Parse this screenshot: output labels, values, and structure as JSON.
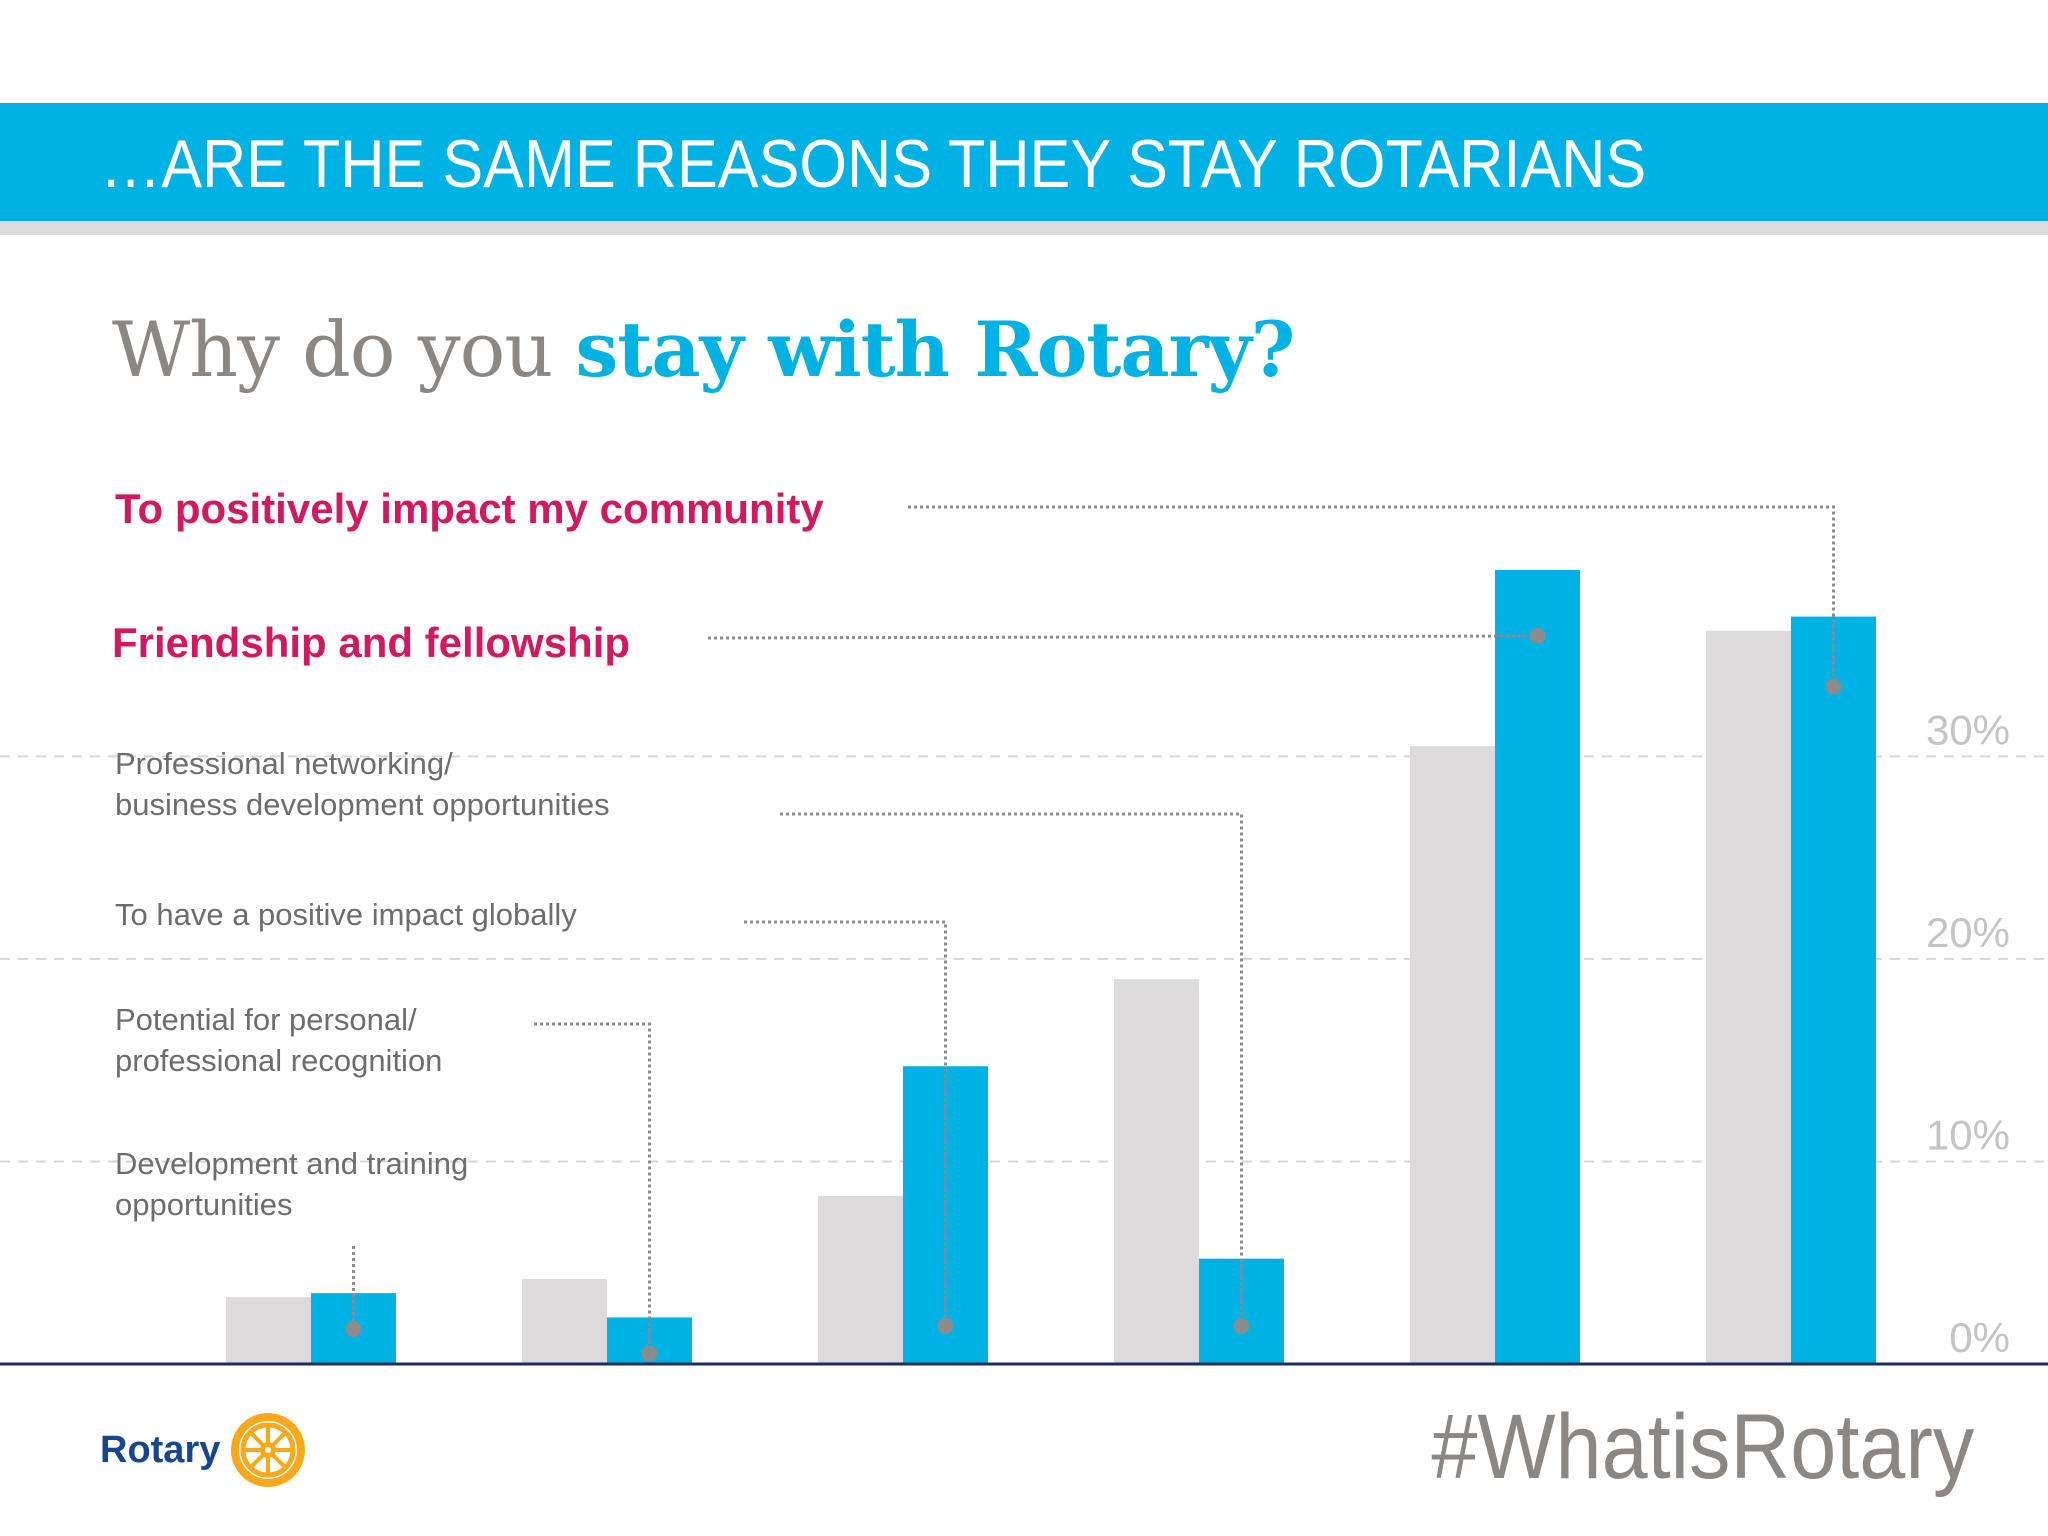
{
  "banner": {
    "title": "…ARE THE SAME REASONS THEY STAY ROTARIANS"
  },
  "question": {
    "lead": "Why do you ",
    "accent": "stay with Rotary?"
  },
  "chart_data": {
    "type": "bar",
    "categories": [
      "Development and training opportunities",
      "Potential for personal/ professional recognition",
      "To have a positive impact globally",
      "Professional networking/ business development opportunities",
      "Friendship and fellowship",
      "To positively impact my community"
    ],
    "label_lines": [
      [
        "Development and training",
        "opportunities"
      ],
      [
        "Potential for personal/",
        "professional recognition"
      ],
      [
        "To have a positive impact globally"
      ],
      [
        "Professional networking/",
        "business development opportunities"
      ],
      [
        "Friendship and fellowship"
      ],
      [
        "To positively impact my community"
      ]
    ],
    "highlighted": [
      false,
      false,
      false,
      false,
      true,
      true
    ],
    "series": [
      {
        "values": [
          3.3,
          4.2,
          8.3,
          19.0,
          30.5,
          36.2
        ]
      },
      {
        "values": [
          3.5,
          2.3,
          14.7,
          5.2,
          39.2,
          36.9
        ]
      }
    ],
    "y_ticks": [
      0,
      10,
      20,
      30
    ],
    "y_tick_labels": [
      "0%",
      "10%",
      "20%",
      "30%"
    ],
    "ylim": [
      0,
      39.2
    ],
    "grid": true,
    "colors": {
      "series_a": "#dcdada",
      "series_b": "#00b2e3",
      "highlight_label": "#d1195f",
      "label": "#6d6d6d",
      "tick": "#c4c4c4",
      "connector": "#8c8c8c"
    }
  },
  "footer": {
    "logo_text": "Rotary",
    "hashtag": "#WhatisRotary"
  }
}
